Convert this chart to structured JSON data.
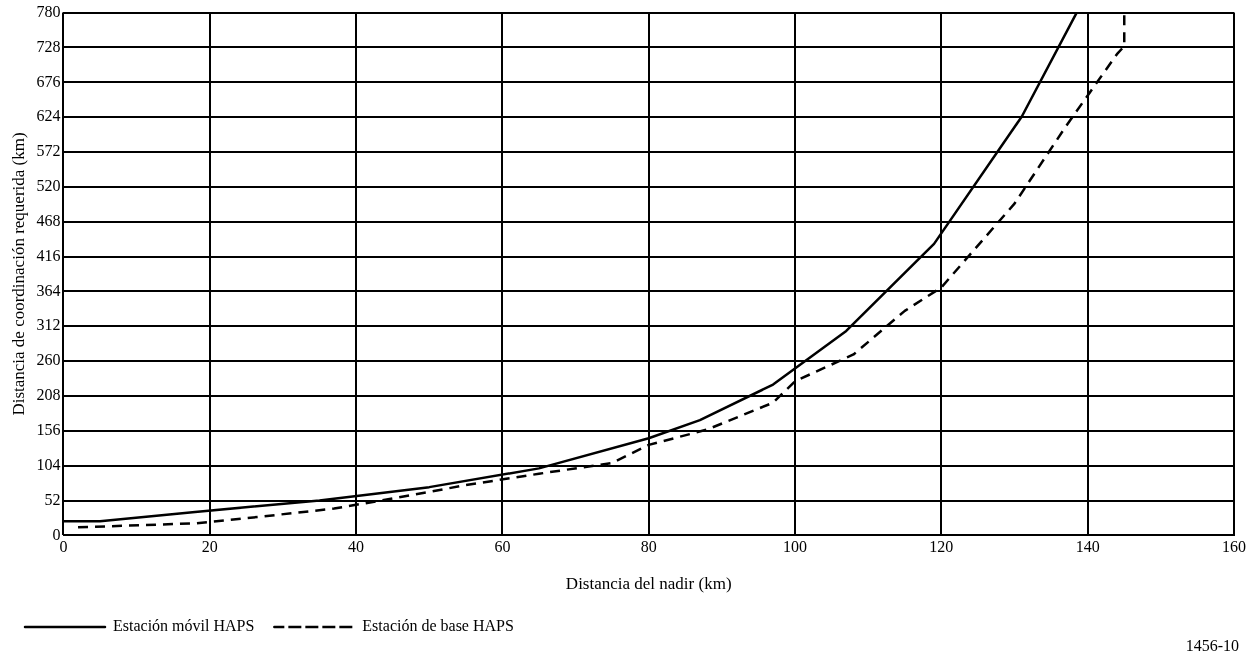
{
  "chart_data": {
    "type": "line",
    "xlabel": "Distancia del nadir (km)",
    "ylabel": "Distancia de coordinación requerida (km)",
    "xlim": [
      0,
      160
    ],
    "xticks": [
      0,
      20,
      40,
      60,
      80,
      100,
      120,
      140,
      160
    ],
    "ylim": [
      0,
      780
    ],
    "yticks": [
      0,
      52,
      104,
      156,
      208,
      260,
      312,
      364,
      416,
      468,
      520,
      572,
      624,
      676,
      728,
      780
    ],
    "grid": true,
    "legend": "bottom left",
    "marker": "none",
    "series": [
      {
        "name": "Estación móvil HAPS",
        "color": "#000000",
        "line_style": "solid",
        "x": [
          0,
          5,
          18,
          35,
          50,
          65,
          80,
          87,
          97,
          107,
          119,
          131,
          138.5
        ],
        "values": [
          21,
          21,
          35,
          52,
          72,
          100,
          145,
          172,
          225,
          305,
          435,
          625,
          780
        ]
      },
      {
        "name": "Estación de base HAPS",
        "color": "#000000",
        "line_style": "dashed",
        "x": [
          2,
          18,
          27,
          37,
          45,
          55,
          65,
          75,
          80,
          88,
          97,
          100,
          108,
          115,
          120,
          130,
          137,
          144,
          145,
          145
        ],
        "values": [
          12,
          18,
          28,
          40,
          55,
          75,
          92,
          108,
          135,
          158,
          198,
          230,
          270,
          335,
          370,
          495,
          610,
          718,
          730,
          780
        ]
      }
    ],
    "annotations": [
      "1456-10"
    ]
  }
}
